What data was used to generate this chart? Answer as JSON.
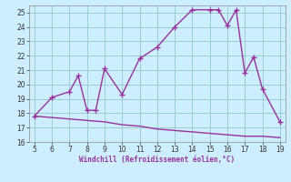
{
  "xlabel": "Windchill (Refroidissement éolien,°C)",
  "x_main": [
    5,
    6,
    7,
    7.5,
    8,
    8.5,
    9,
    10,
    11,
    12,
    13,
    14,
    15,
    15.5,
    16,
    16.5,
    17,
    17.5,
    18,
    19
  ],
  "y_main": [
    17.8,
    19.1,
    19.5,
    20.6,
    18.2,
    18.2,
    21.1,
    19.3,
    21.8,
    22.6,
    24.0,
    25.2,
    25.2,
    25.2,
    24.1,
    25.2,
    20.8,
    21.9,
    19.7,
    17.4
  ],
  "x_line2": [
    5,
    6,
    7,
    8,
    9,
    10,
    11,
    12,
    13,
    14,
    15,
    16,
    17,
    18,
    19
  ],
  "y_line2": [
    17.8,
    17.7,
    17.6,
    17.5,
    17.4,
    17.2,
    17.1,
    16.9,
    16.8,
    16.7,
    16.6,
    16.5,
    16.4,
    16.4,
    16.3
  ],
  "line_color": "#993399",
  "bg_color": "#cceeff",
  "grid_color": "#99cccc",
  "xlim": [
    4.7,
    19.3
  ],
  "ylim": [
    16,
    25.5
  ],
  "xticks": [
    5,
    6,
    7,
    8,
    9,
    10,
    11,
    12,
    13,
    14,
    15,
    16,
    17,
    18,
    19
  ],
  "yticks": [
    16,
    17,
    18,
    19,
    20,
    21,
    22,
    23,
    24,
    25
  ],
  "marker": "+",
  "markersize": 4,
  "linewidth": 1.0
}
